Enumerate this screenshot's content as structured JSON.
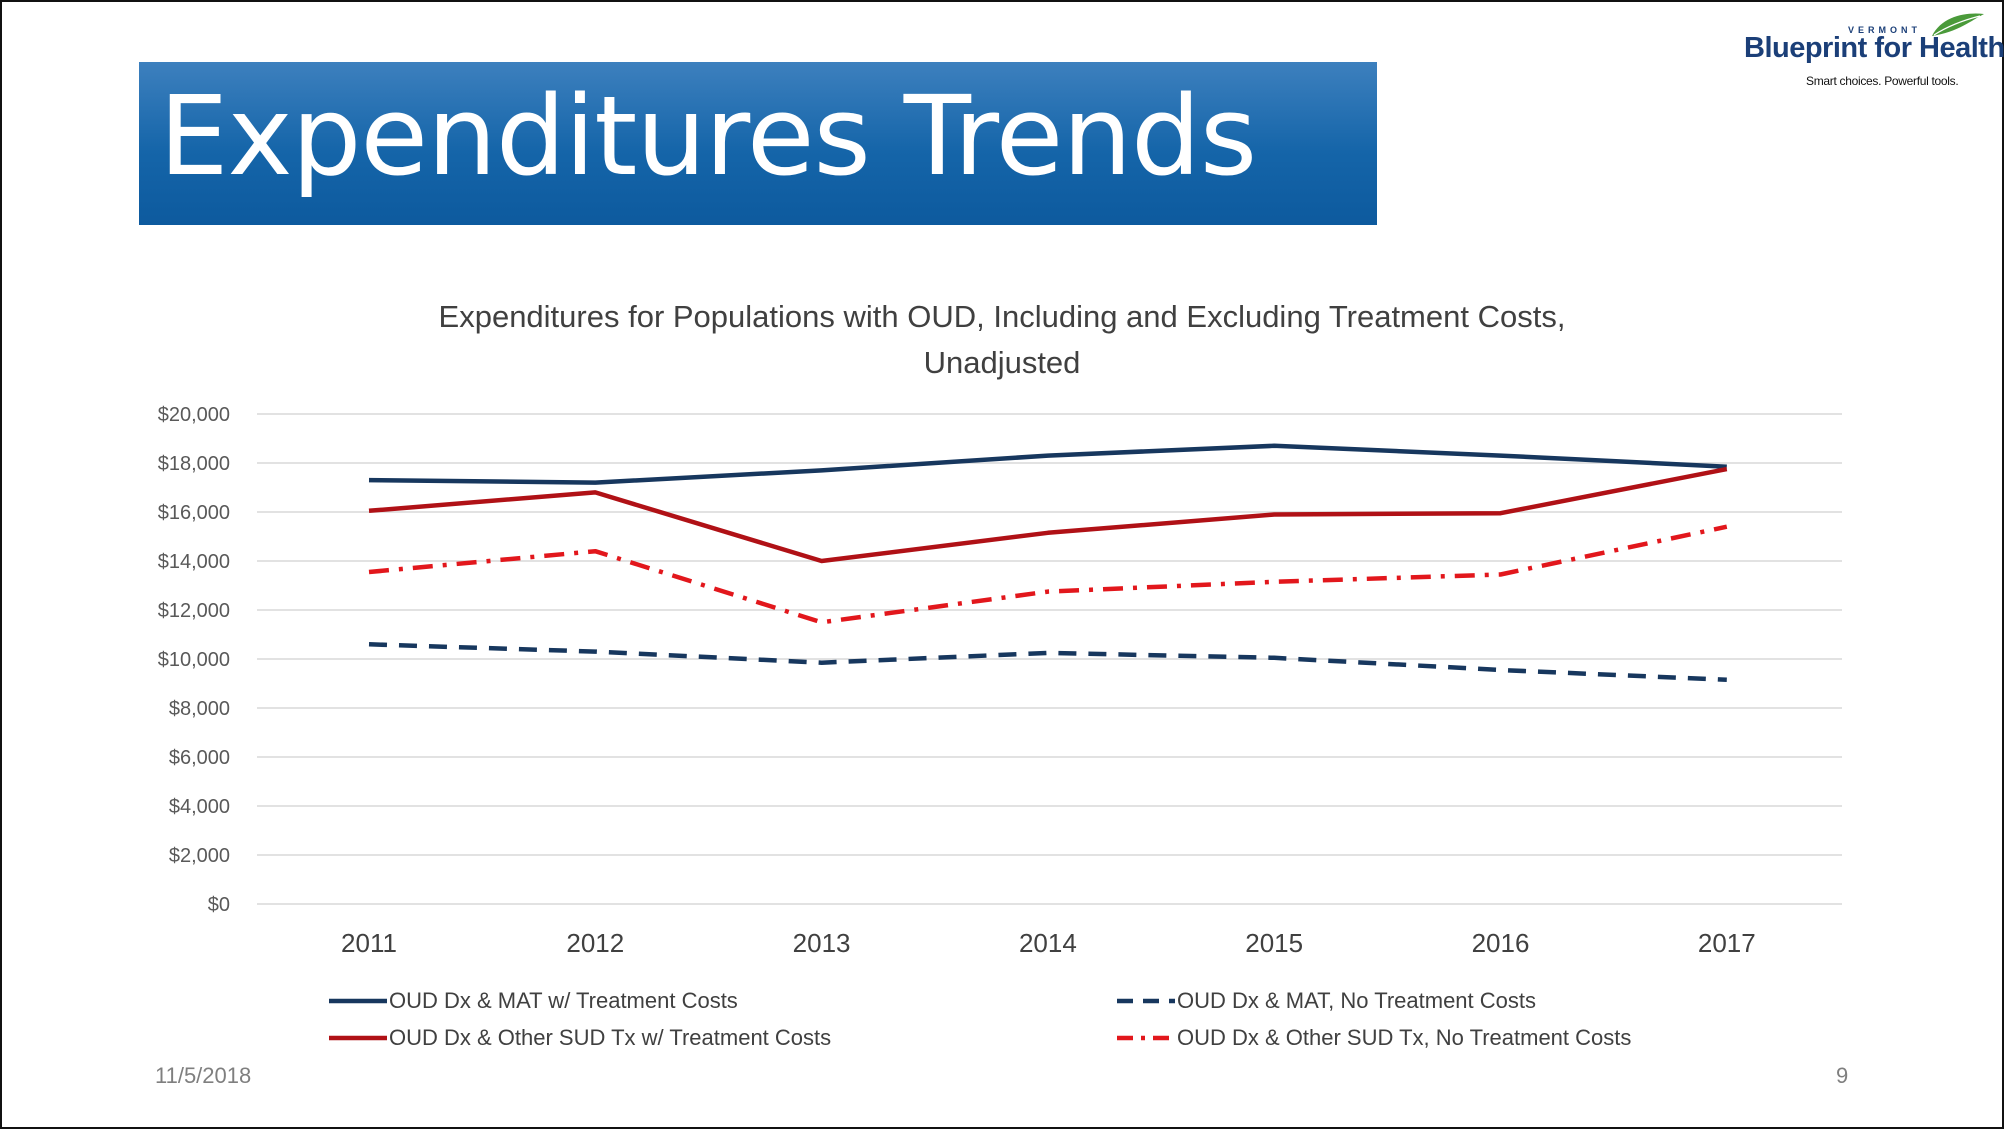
{
  "slide": {
    "title": "Expenditures Trends",
    "date": "11/5/2018",
    "page_number": "9"
  },
  "logo": {
    "top_text": "VERMONT",
    "main_text": "Blueprint for Health",
    "tagline": "Smart choices. Powerful tools.",
    "color": "#1b3f78",
    "leaf_color": "#4a9a3a"
  },
  "chart_data": {
    "type": "line",
    "title": "Expenditures for Populations with OUD, Including and Excluding Treatment Costs, Unadjusted",
    "title_lines": [
      "Expenditures for Populations with OUD, Including and Excluding Treatment Costs,",
      "Unadjusted"
    ],
    "categories": [
      "2011",
      "2012",
      "2013",
      "2014",
      "2015",
      "2016",
      "2017"
    ],
    "ylim": [
      0,
      20000
    ],
    "y_ticks": [
      0,
      2000,
      4000,
      6000,
      8000,
      10000,
      12000,
      14000,
      16000,
      18000,
      20000
    ],
    "y_tick_labels": [
      "$0",
      "$2,000",
      "$4,000",
      "$6,000",
      "$8,000",
      "$10,000",
      "$12,000",
      "$14,000",
      "$16,000",
      "$18,000",
      "$20,000"
    ],
    "grid": true,
    "legend_position": "bottom",
    "series": [
      {
        "name": "OUD Dx & MAT w/ Treatment Costs",
        "color": "#17375e",
        "dash": "solid",
        "values": [
          17300,
          17200,
          17700,
          18300,
          18700,
          18300,
          17850
        ]
      },
      {
        "name": "OUD Dx & MAT, No Treatment Costs",
        "color": "#17375e",
        "dash": "dashed",
        "values": [
          10600,
          10300,
          9850,
          10250,
          10050,
          9550,
          9150
        ]
      },
      {
        "name": "OUD Dx & Other SUD Tx w/ Treatment Costs",
        "color": "#b01116",
        "dash": "solid",
        "values": [
          16050,
          16800,
          14000,
          15150,
          15900,
          15950,
          17750
        ]
      },
      {
        "name": "OUD Dx & Other SUD Tx, No Treatment Costs",
        "color": "#e2171c",
        "dash": "dashdot",
        "values": [
          13550,
          14400,
          11500,
          12750,
          13150,
          13450,
          15400
        ]
      }
    ]
  }
}
